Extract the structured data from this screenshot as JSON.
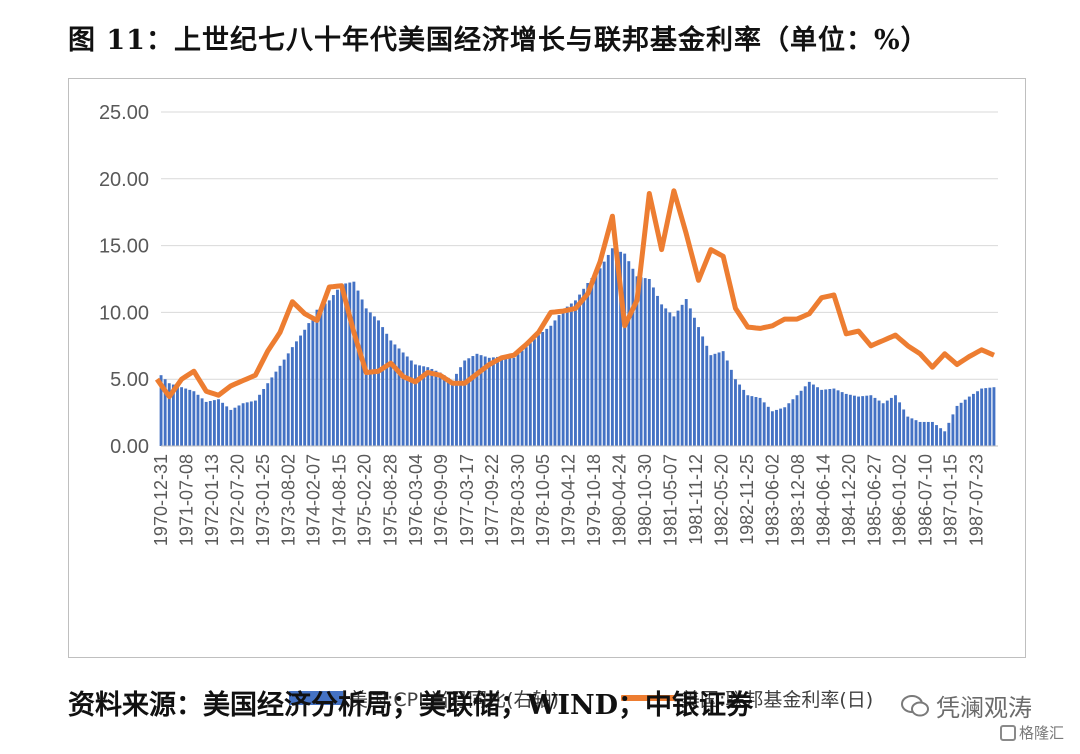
{
  "figure": {
    "title": "图 11：上世纪七八十年代美国经济增长与联邦基金利率（单位：%）",
    "source": "资料来源：美国经济分析局；美联储；WIND；中银证券"
  },
  "watermark": {
    "main": "凭澜观涛",
    "sub": "格隆汇"
  },
  "colors": {
    "cpi_bars": "#4472c4",
    "fed_funds_line": "#ed7d31",
    "gridline": "#d9d9d9",
    "tick_text": "#595959"
  },
  "chart_data": {
    "type": "bar+line",
    "title": "",
    "xlabel": "",
    "ylabel": "",
    "ylim": [
      0,
      25
    ],
    "ytick_labels": [
      "0.00",
      "5.00",
      "10.00",
      "15.00",
      "20.00",
      "25.00"
    ],
    "x_tick_labels": [
      "1970-12-31",
      "1971-07-08",
      "1972-01-13",
      "1972-07-20",
      "1973-01-25",
      "1973-08-02",
      "1974-02-07",
      "1974-08-15",
      "1975-02-20",
      "1975-08-28",
      "1976-03-04",
      "1976-09-09",
      "1977-03-17",
      "1977-09-22",
      "1978-03-30",
      "1978-10-05",
      "1979-04-12",
      "1979-10-18",
      "1980-04-24",
      "1980-10-30",
      "1981-05-07",
      "1981-11-12",
      "1982-05-20",
      "1982-11-25",
      "1983-06-02",
      "1983-12-08",
      "1984-06-14",
      "1984-12-20",
      "1985-06-27",
      "1986-01-02",
      "1986-07-10",
      "1987-01-15",
      "1987-07-23"
    ],
    "x_range": [
      "1970-12-31",
      "1987-12-31"
    ],
    "grid": true,
    "legend_position": "bottom",
    "series": [
      {
        "name": "美国:CPI:当月同比(右轴)",
        "kind": "bar",
        "points": [
          [
            "1970-12",
            5.6
          ],
          [
            "1971-03",
            4.7
          ],
          [
            "1971-06",
            4.4
          ],
          [
            "1971-09",
            4.1
          ],
          [
            "1971-12",
            3.3
          ],
          [
            "1972-03",
            3.5
          ],
          [
            "1972-06",
            2.7
          ],
          [
            "1972-09",
            3.2
          ],
          [
            "1972-12",
            3.4
          ],
          [
            "1973-03",
            4.7
          ],
          [
            "1973-06",
            6.0
          ],
          [
            "1973-09",
            7.4
          ],
          [
            "1973-12",
            8.7
          ],
          [
            "1974-03",
            10.2
          ],
          [
            "1974-06",
            10.9
          ],
          [
            "1974-09",
            12.1
          ],
          [
            "1974-12",
            12.3
          ],
          [
            "1975-03",
            10.3
          ],
          [
            "1975-06",
            9.4
          ],
          [
            "1975-09",
            7.9
          ],
          [
            "1975-12",
            7.0
          ],
          [
            "1976-03",
            6.1
          ],
          [
            "1976-06",
            5.9
          ],
          [
            "1976-09",
            5.5
          ],
          [
            "1976-12",
            4.9
          ],
          [
            "1977-03",
            6.4
          ],
          [
            "1977-06",
            6.9
          ],
          [
            "1977-09",
            6.6
          ],
          [
            "1977-12",
            6.7
          ],
          [
            "1978-03",
            6.6
          ],
          [
            "1978-06",
            7.4
          ],
          [
            "1978-09",
            8.3
          ],
          [
            "1978-12",
            9.0
          ],
          [
            "1979-03",
            10.2
          ],
          [
            "1979-06",
            10.9
          ],
          [
            "1979-09",
            12.2
          ],
          [
            "1979-12",
            13.3
          ],
          [
            "1980-03",
            14.8
          ],
          [
            "1980-06",
            14.4
          ],
          [
            "1980-09",
            12.7
          ],
          [
            "1980-12",
            12.5
          ],
          [
            "1981-03",
            10.6
          ],
          [
            "1981-06",
            9.7
          ],
          [
            "1981-09",
            11.0
          ],
          [
            "1981-12",
            8.9
          ],
          [
            "1982-03",
            6.8
          ],
          [
            "1982-06",
            7.1
          ],
          [
            "1982-09",
            5.0
          ],
          [
            "1982-12",
            3.8
          ],
          [
            "1983-03",
            3.6
          ],
          [
            "1983-06",
            2.6
          ],
          [
            "1983-09",
            2.9
          ],
          [
            "1983-12",
            3.8
          ],
          [
            "1984-03",
            4.8
          ],
          [
            "1984-06",
            4.2
          ],
          [
            "1984-09",
            4.3
          ],
          [
            "1984-12",
            3.9
          ],
          [
            "1985-03",
            3.7
          ],
          [
            "1985-06",
            3.8
          ],
          [
            "1985-09",
            3.2
          ],
          [
            "1985-12",
            3.8
          ],
          [
            "1986-03",
            2.2
          ],
          [
            "1986-06",
            1.8
          ],
          [
            "1986-09",
            1.8
          ],
          [
            "1986-12",
            1.1
          ],
          [
            "1987-03",
            3.0
          ],
          [
            "1987-06",
            3.7
          ],
          [
            "1987-09",
            4.3
          ],
          [
            "1987-12",
            4.4
          ]
        ]
      },
      {
        "name": "美国:联邦基金利率(日)",
        "kind": "line",
        "points": [
          [
            "1970-12",
            5.0
          ],
          [
            "1971-03",
            3.7
          ],
          [
            "1971-06",
            5.0
          ],
          [
            "1971-09",
            5.6
          ],
          [
            "1971-12",
            4.1
          ],
          [
            "1972-03",
            3.8
          ],
          [
            "1972-06",
            4.5
          ],
          [
            "1972-09",
            4.9
          ],
          [
            "1972-12",
            5.3
          ],
          [
            "1973-03",
            7.1
          ],
          [
            "1973-06",
            8.5
          ],
          [
            "1973-09",
            10.8
          ],
          [
            "1973-12",
            9.9
          ],
          [
            "1974-03",
            9.4
          ],
          [
            "1974-06",
            11.9
          ],
          [
            "1974-09",
            12.0
          ],
          [
            "1974-12",
            8.5
          ],
          [
            "1975-03",
            5.5
          ],
          [
            "1975-06",
            5.6
          ],
          [
            "1975-09",
            6.2
          ],
          [
            "1975-12",
            5.2
          ],
          [
            "1976-03",
            4.8
          ],
          [
            "1976-06",
            5.5
          ],
          [
            "1976-09",
            5.3
          ],
          [
            "1976-12",
            4.7
          ],
          [
            "1977-03",
            4.7
          ],
          [
            "1977-06",
            5.4
          ],
          [
            "1977-09",
            6.1
          ],
          [
            "1977-12",
            6.6
          ],
          [
            "1978-03",
            6.8
          ],
          [
            "1978-06",
            7.6
          ],
          [
            "1978-09",
            8.5
          ],
          [
            "1978-12",
            10.0
          ],
          [
            "1979-03",
            10.1
          ],
          [
            "1979-06",
            10.3
          ],
          [
            "1979-09",
            11.4
          ],
          [
            "1979-12",
            13.8
          ],
          [
            "1980-03",
            17.2
          ],
          [
            "1980-06",
            9.0
          ],
          [
            "1980-09",
            10.9
          ],
          [
            "1980-12",
            18.9
          ],
          [
            "1981-03",
            14.7
          ],
          [
            "1981-06",
            19.1
          ],
          [
            "1981-09",
            15.9
          ],
          [
            "1981-12",
            12.4
          ],
          [
            "1982-03",
            14.7
          ],
          [
            "1982-06",
            14.2
          ],
          [
            "1982-09",
            10.3
          ],
          [
            "1982-12",
            8.9
          ],
          [
            "1983-03",
            8.8
          ],
          [
            "1983-06",
            9.0
          ],
          [
            "1983-09",
            9.5
          ],
          [
            "1983-12",
            9.5
          ],
          [
            "1984-03",
            9.9
          ],
          [
            "1984-06",
            11.1
          ],
          [
            "1984-09",
            11.3
          ],
          [
            "1984-12",
            8.4
          ],
          [
            "1985-03",
            8.6
          ],
          [
            "1985-06",
            7.5
          ],
          [
            "1985-09",
            7.9
          ],
          [
            "1985-12",
            8.3
          ],
          [
            "1986-03",
            7.5
          ],
          [
            "1986-06",
            6.9
          ],
          [
            "1986-09",
            5.9
          ],
          [
            "1986-12",
            6.9
          ],
          [
            "1987-03",
            6.1
          ],
          [
            "1987-06",
            6.7
          ],
          [
            "1987-09",
            7.2
          ],
          [
            "1987-12",
            6.8
          ]
        ]
      }
    ]
  }
}
